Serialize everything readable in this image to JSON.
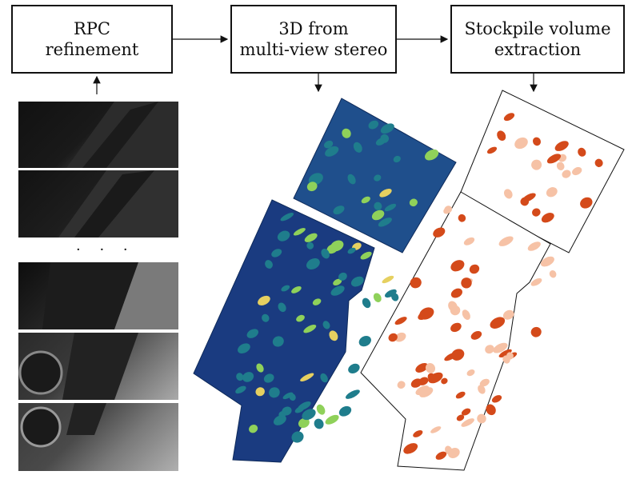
{
  "boxes": {
    "rpc": {
      "line1": "RPC",
      "line2": "refinement"
    },
    "mvs": {
      "line1": "3D from",
      "line2": "multi-view stereo"
    },
    "volume": {
      "line1": "Stockpile volume",
      "line2": "extraction"
    }
  },
  "ellipsis": "· · ·",
  "colors": {
    "box_border": "#111111",
    "dem_low": "#1a2f7a",
    "dem_mid": "#1f7d8c",
    "dem_high": "#8fd15a",
    "dem_peak": "#e6d060",
    "stockpile_light": "#f6c2a6",
    "stockpile_dark": "#d44a1a"
  },
  "icons": [
    "arrow-right-icon",
    "arrow-down-icon",
    "arrow-up-icon"
  ]
}
